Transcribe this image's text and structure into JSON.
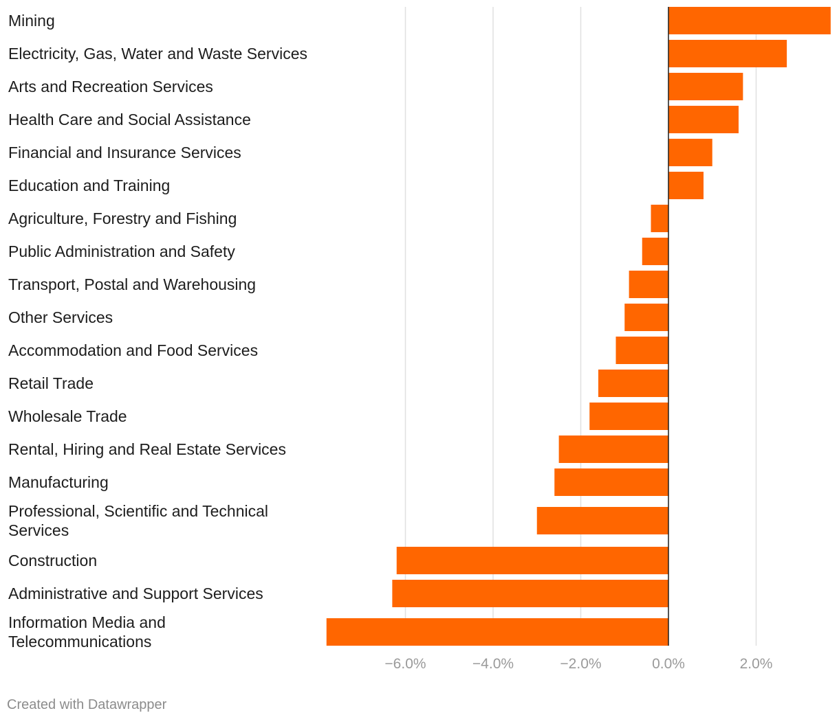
{
  "chart_data": {
    "type": "bar",
    "orientation": "horizontal",
    "colors": {
      "bar": "#ff6600",
      "grid": "#e0e0e0",
      "zero_line": "#1d1d1d",
      "tick_text": "#9a9a9a",
      "label_text": "#1d1d1d"
    },
    "categories": [
      "Mining",
      "Electricity, Gas, Water and Waste Services",
      "Arts and Recreation Services",
      "Health Care and Social Assistance",
      "Financial and Insurance Services",
      "Education and Training",
      "Agriculture, Forestry and Fishing",
      "Public Administration and Safety",
      "Transport, Postal and Warehousing",
      "Other Services",
      "Accommodation and Food Services",
      "Retail Trade",
      "Wholesale Trade",
      "Rental, Hiring and Real Estate Services",
      "Manufacturing",
      "Professional, Scientific and Technical Services",
      "Construction",
      "Administrative and Support Services",
      "Information Media and Telecommunications"
    ],
    "label_lines": [
      [
        "Mining"
      ],
      [
        "Electricity, Gas, Water and Waste Services"
      ],
      [
        "Arts and Recreation Services"
      ],
      [
        "Health Care and Social Assistance"
      ],
      [
        "Financial and Insurance Services"
      ],
      [
        "Education and Training"
      ],
      [
        "Agriculture, Forestry and Fishing"
      ],
      [
        "Public Administration and Safety"
      ],
      [
        "Transport, Postal and Warehousing"
      ],
      [
        "Other Services"
      ],
      [
        "Accommodation and Food Services"
      ],
      [
        "Retail Trade"
      ],
      [
        "Wholesale Trade"
      ],
      [
        "Rental, Hiring and Real Estate Services"
      ],
      [
        "Manufacturing"
      ],
      [
        "Professional, Scientific and Technical",
        "Services"
      ],
      [
        "Construction"
      ],
      [
        "Administrative and Support Services"
      ],
      [
        "Information Media and",
        "Telecommunications"
      ]
    ],
    "values": [
      3.7,
      2.7,
      1.7,
      1.6,
      1.0,
      0.8,
      -0.4,
      -0.6,
      -0.9,
      -1.0,
      -1.2,
      -1.6,
      -1.8,
      -2.5,
      -2.6,
      -3.0,
      -6.2,
      -6.3,
      -7.8
    ],
    "x_ticks": [
      -6,
      -4,
      -2,
      0,
      2
    ],
    "x_tick_labels": [
      "−6.0%",
      "−4.0%",
      "−2.0%",
      "0.0%",
      "2.0%"
    ],
    "xlim": [
      -7.8,
      3.7
    ],
    "grid": true
  },
  "footer": {
    "credit": "Created with Datawrapper"
  }
}
